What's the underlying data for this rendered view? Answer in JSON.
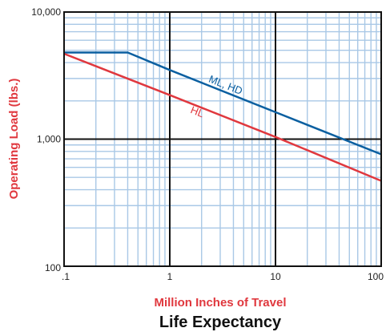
{
  "chart_data": {
    "type": "line",
    "title": "Life Expectancy",
    "xlabel": "Million Inches of Travel",
    "ylabel": "Operating Load (lbs.)",
    "x_scale": "log",
    "y_scale": "log",
    "xlim": [
      0.1,
      100
    ],
    "ylim": [
      100,
      10000
    ],
    "grid": true,
    "x_ticks": [
      {
        "value": 0.1,
        "label": ".1"
      },
      {
        "value": 1,
        "label": "1"
      },
      {
        "value": 10,
        "label": "10"
      },
      {
        "value": 100,
        "label": "100"
      }
    ],
    "y_ticks": [
      {
        "value": 100,
        "label": "100"
      },
      {
        "value": 1000,
        "label": "1,000"
      },
      {
        "value": 10000,
        "label": "10,000"
      }
    ],
    "series": [
      {
        "name": "ML, HD",
        "color": "#0a5fa0",
        "points": [
          [
            0.1,
            4800
          ],
          [
            0.4,
            4800
          ],
          [
            1,
            3500
          ],
          [
            10,
            1630
          ],
          [
            100,
            760
          ]
        ]
      },
      {
        "name": "HL",
        "color": "#e0383e",
        "points": [
          [
            0.1,
            4700
          ],
          [
            1,
            2220
          ],
          [
            10,
            1040
          ],
          [
            100,
            470
          ]
        ]
      }
    ],
    "colors": {
      "grid_minor": "#a9c8e6",
      "grid_major": "#111111",
      "axis_title": "#e0383e"
    }
  }
}
